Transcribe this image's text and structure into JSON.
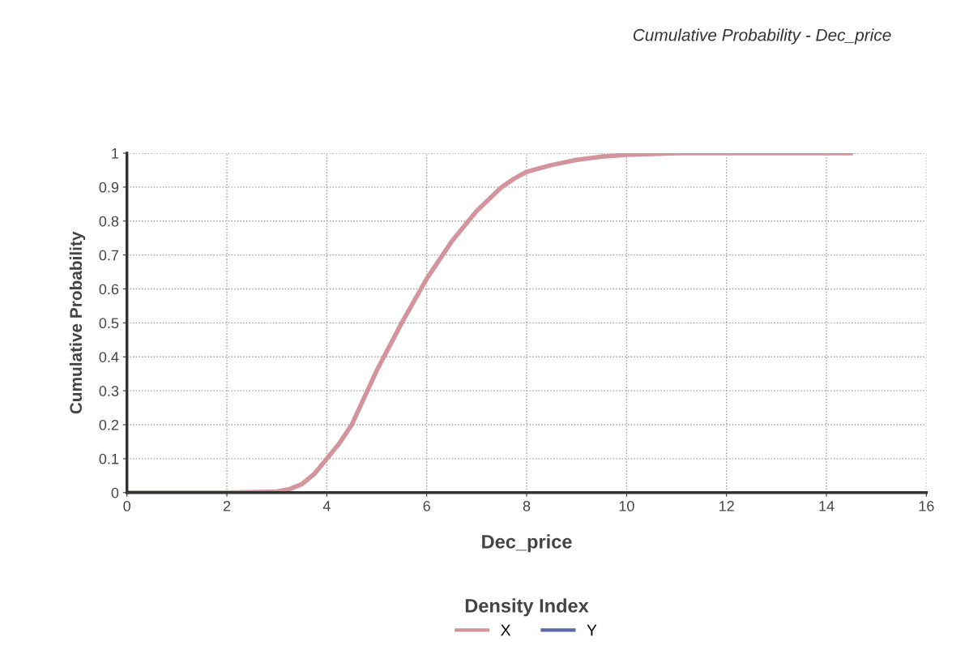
{
  "chart_data": {
    "type": "line",
    "title": "Cumulative Probability - Dec_price",
    "xlabel": "Dec_price",
    "ylabel": "Cumulative Probability",
    "legend_title": "Density Index",
    "xlim": [
      0,
      16
    ],
    "xticks": [
      0,
      2,
      4,
      6,
      8,
      10,
      12,
      14,
      16
    ],
    "ylim": [
      0,
      1
    ],
    "yticks": [
      0,
      0.1,
      0.2,
      0.3,
      0.4,
      0.5,
      0.6,
      0.7,
      0.8,
      0.9,
      1
    ],
    "grid": true,
    "legend": "bottom",
    "series": [
      {
        "name": "X",
        "color": "#d4949c",
        "x": [
          0,
          2,
          3,
          3.25,
          3.5,
          3.75,
          4,
          4.25,
          4.5,
          4.75,
          5,
          5.5,
          6,
          6.5,
          7,
          7.5,
          7.75,
          8,
          8.5,
          9,
          9.5,
          10,
          11,
          12,
          14.5
        ],
        "values": [
          0,
          0,
          0.003,
          0.01,
          0.025,
          0.055,
          0.1,
          0.145,
          0.2,
          0.28,
          0.36,
          0.5,
          0.63,
          0.74,
          0.83,
          0.9,
          0.925,
          0.945,
          0.965,
          0.98,
          0.99,
          0.995,
          1,
          1,
          1
        ]
      },
      {
        "name": "Y",
        "color": "#5a6aa8"
      }
    ]
  }
}
